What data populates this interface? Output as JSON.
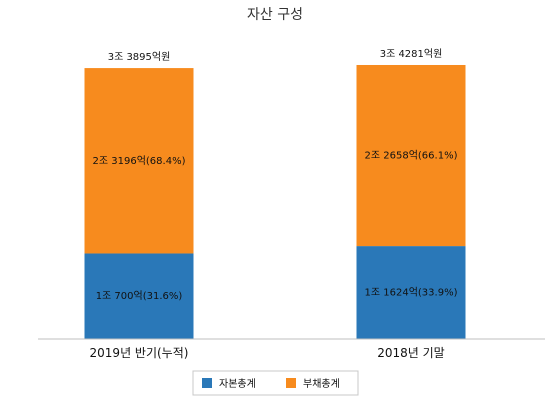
{
  "chart_data": {
    "type": "bar",
    "stacked": true,
    "title": "자산 구성",
    "categories": [
      "2019년 반기(누적)",
      "2018년 기말"
    ],
    "totals": [
      "3조 3895억원",
      "3조 4281억원"
    ],
    "total_values": [
      33895,
      34281
    ],
    "unit": "억원",
    "series": [
      {
        "name": "자본총계",
        "values": [
          10700,
          11624
        ],
        "labels": [
          "1조 700억(31.6%)",
          "1조 1624억(33.9%)"
        ],
        "color": "#2a78b8"
      },
      {
        "name": "부채총계",
        "values": [
          23196,
          22658
        ],
        "labels": [
          "2조 3196억(68.4%)",
          "2조 2658억(66.1%)"
        ],
        "color": "#f78b1e"
      }
    ],
    "legend": "bottom",
    "grid": false
  }
}
